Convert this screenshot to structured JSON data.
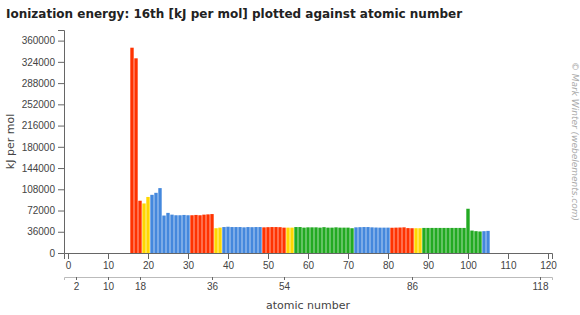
{
  "chart_data": {
    "type": "bar",
    "title": "Ionization energy: 16th [kJ per mol] plotted against atomic number",
    "ylabel": "kJ per mol",
    "xlabel": "atomic number",
    "annotations": [
      "© Mark Winter (webelements.com)"
    ],
    "xlim": [
      -1,
      121
    ],
    "xticks": [
      0,
      10,
      20,
      30,
      40,
      50,
      60,
      70,
      80,
      90,
      100,
      110,
      120
    ],
    "x2lim": [
      -1,
      121
    ],
    "x2ticks": [
      2,
      10,
      18,
      36,
      54,
      86,
      118
    ],
    "ylim": [
      0,
      378000
    ],
    "yticks": [
      0,
      36000,
      72000,
      108000,
      144000,
      180000,
      216000,
      252000,
      288000,
      324000,
      360000
    ],
    "x": [
      16,
      17,
      18,
      19,
      20,
      21,
      22,
      23,
      24,
      25,
      26,
      27,
      28,
      29,
      30,
      31,
      32,
      33,
      34,
      35,
      36,
      37,
      38,
      39,
      40,
      41,
      42,
      43,
      44,
      45,
      46,
      47,
      48,
      49,
      50,
      51,
      52,
      53,
      54,
      55,
      56,
      57,
      58,
      59,
      60,
      61,
      62,
      63,
      64,
      65,
      66,
      67,
      68,
      69,
      70,
      71,
      72,
      73,
      74,
      75,
      76,
      77,
      78,
      79,
      80,
      81,
      82,
      83,
      84,
      85,
      86,
      87,
      88,
      89,
      90,
      91,
      92,
      93,
      94,
      95,
      96,
      97,
      98,
      99,
      100,
      101,
      102,
      103,
      104,
      105
    ],
    "values": [
      348000,
      330000,
      88600,
      84000,
      95000,
      98600,
      102000,
      110000,
      63500,
      68000,
      65000,
      64000,
      64000,
      64500,
      64000,
      64000,
      64500,
      64000,
      65000,
      65500,
      66000,
      42000,
      43000,
      44000,
      44500,
      44000,
      44000,
      44000,
      43500,
      44000,
      43800,
      44000,
      44000,
      43500,
      43800,
      44000,
      44000,
      43800,
      43000,
      43000,
      43000,
      44000,
      44000,
      43000,
      43500,
      43500,
      43500,
      43000,
      43800,
      43000,
      43000,
      43500,
      43000,
      43000,
      43000,
      42000,
      43500,
      43800,
      44000,
      44000,
      43500,
      43200,
      43000,
      43000,
      43000,
      42800,
      43000,
      43200,
      43500,
      42200,
      42000,
      42000,
      42000,
      42500,
      42500,
      42500,
      42500,
      42500,
      42500,
      42500,
      42500,
      42500,
      42500,
      42500,
      75000,
      38000,
      37000,
      36500,
      37000,
      37500
    ],
    "colors": [
      "#FF3300",
      "#FF3300",
      "#FF3300",
      "#FFD700",
      "#FFD700",
      "#4488dd",
      "#4488dd",
      "#4488dd",
      "#4488dd",
      "#4488dd",
      "#4488dd",
      "#4488dd",
      "#4488dd",
      "#4488dd",
      "#4488dd",
      "#FF3300",
      "#FF3300",
      "#FF3300",
      "#FF3300",
      "#FF3300",
      "#FF3300",
      "#FFD700",
      "#FFD700",
      "#4488dd",
      "#4488dd",
      "#4488dd",
      "#4488dd",
      "#4488dd",
      "#4488dd",
      "#4488dd",
      "#4488dd",
      "#4488dd",
      "#4488dd",
      "#FF3300",
      "#FF3300",
      "#FF3300",
      "#FF3300",
      "#FF3300",
      "#FF3300",
      "#FFD700",
      "#FFD700",
      "#22aa22",
      "#22aa22",
      "#22aa22",
      "#22aa22",
      "#22aa22",
      "#22aa22",
      "#22aa22",
      "#22aa22",
      "#22aa22",
      "#22aa22",
      "#22aa22",
      "#22aa22",
      "#22aa22",
      "#22aa22",
      "#22aa22",
      "#4488dd",
      "#4488dd",
      "#4488dd",
      "#4488dd",
      "#4488dd",
      "#4488dd",
      "#4488dd",
      "#4488dd",
      "#4488dd",
      "#FF3300",
      "#FF3300",
      "#FF3300",
      "#FF3300",
      "#FF3300",
      "#FF3300",
      "#FFD700",
      "#FFD700",
      "#22aa22",
      "#22aa22",
      "#22aa22",
      "#22aa22",
      "#22aa22",
      "#22aa22",
      "#22aa22",
      "#22aa22",
      "#22aa22",
      "#22aa22",
      "#22aa22",
      "#22aa22",
      "#22aa22",
      "#22aa22",
      "#22aa22",
      "#4488dd",
      "#4488dd"
    ]
  }
}
